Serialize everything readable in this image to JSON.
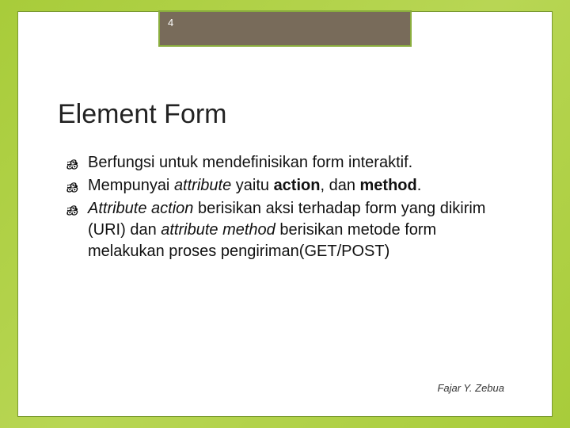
{
  "slide": {
    "page_number": "4",
    "title": "Element Form",
    "bullets": [
      {
        "prefix": "Berfungsi",
        "rest": " untuk mendefinisikan form interaktif."
      },
      {
        "html": "Mempunyai <span class='italic'>attribute</span> yaitu <span class='bold'>action</span>, dan <span class='bold'>method</span>."
      },
      {
        "html": "<span class='italic'>Attribute action</span> berisikan aksi terhadap form yang dikirim (URI) dan <span class='italic'>attribute method</span> berisikan metode form melakukan proses pengiriman(GET/POST)"
      }
    ],
    "footer": "Fajar Y. Zebua"
  },
  "styles": {
    "background_gradient": [
      "#a8cc3a",
      "#b8d654"
    ],
    "frame_border": "#7a9a2f",
    "header_bg": "#786b5a",
    "header_border": "#8aad3e",
    "title_fontsize": 34,
    "body_fontsize": 20,
    "footer_fontsize": 13
  }
}
